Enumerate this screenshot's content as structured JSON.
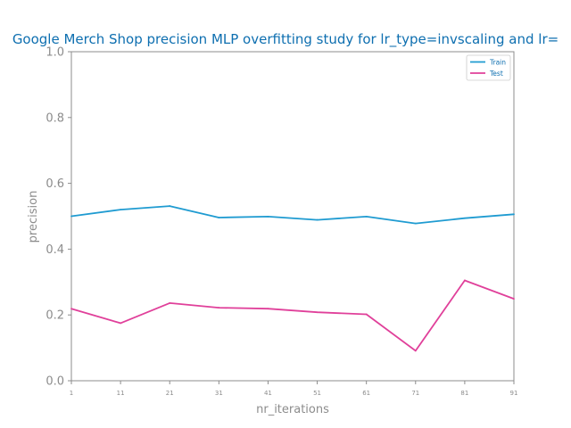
{
  "chart_data": {
    "type": "line",
    "title": "Google Merch Shop precision MLP overfitting study for lr_type=invscaling and lr=",
    "xlabel": "nr_iterations",
    "ylabel": "precision",
    "x": [
      1,
      11,
      21,
      31,
      41,
      51,
      61,
      71,
      81,
      91
    ],
    "xticks": [
      "1",
      "11",
      "21",
      "31",
      "41",
      "51",
      "61",
      "71",
      "81",
      "91"
    ],
    "xlim": [
      1,
      91
    ],
    "ylim": [
      0.0,
      1.0
    ],
    "yticks": [
      "0.0",
      "0.2",
      "0.4",
      "0.6",
      "0.8",
      "1.0"
    ],
    "grid": false,
    "legend_position": "top-right",
    "series": [
      {
        "name": "Train",
        "color": "#1f9bd1",
        "values": [
          0.5,
          0.52,
          0.531,
          0.496,
          0.499,
          0.489,
          0.499,
          0.478,
          0.494,
          0.506
        ]
      },
      {
        "name": "Test",
        "color": "#e0409a",
        "values": [
          0.219,
          0.175,
          0.236,
          0.222,
          0.219,
          0.208,
          0.202,
          0.091,
          0.305,
          0.249
        ]
      }
    ],
    "colors": {
      "title": "#0e6fb0",
      "axis": "#8c8c8c",
      "legend_text": "#0e6fb0"
    }
  }
}
